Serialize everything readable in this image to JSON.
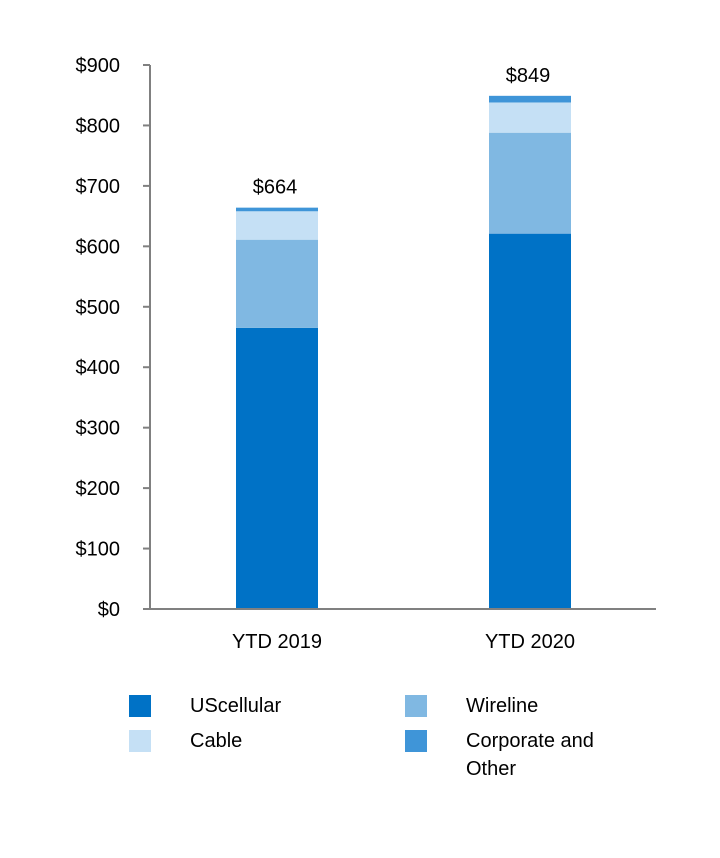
{
  "chart_data": {
    "type": "bar",
    "stacked": true,
    "title": "",
    "xlabel": "",
    "ylabel": "",
    "ylim": [
      0,
      900
    ],
    "yticks": [
      0,
      100,
      200,
      300,
      400,
      500,
      600,
      700,
      800,
      900
    ],
    "ytick_labels": [
      "$0",
      "$100",
      "$200",
      "$300",
      "$400",
      "$500",
      "$600",
      "$700",
      "$800",
      "$900"
    ],
    "categories": [
      "YTD 2019",
      "YTD 2020"
    ],
    "series": [
      {
        "name": "UScellular",
        "color": "#0072c6",
        "values": [
          465,
          621
        ]
      },
      {
        "name": "Wireline",
        "color": "#80b8e2",
        "values": [
          146,
          167
        ]
      },
      {
        "name": "Cable",
        "color": "#c5e0f5",
        "values": [
          47,
          50
        ]
      },
      {
        "name": "Corporate and Other",
        "color": "#3f95d8",
        "values": [
          6,
          11
        ]
      }
    ],
    "totals": [
      "$664",
      "$849"
    ],
    "legend_position": "bottom",
    "grid": false
  },
  "legend": [
    {
      "label": "UScellular",
      "color": "#0072c6"
    },
    {
      "label": "Wireline",
      "color": "#80b8e2"
    },
    {
      "label": "Cable",
      "color": "#c5e0f5"
    },
    {
      "label": "Corporate and\nOther",
      "color": "#3f95d8"
    }
  ]
}
